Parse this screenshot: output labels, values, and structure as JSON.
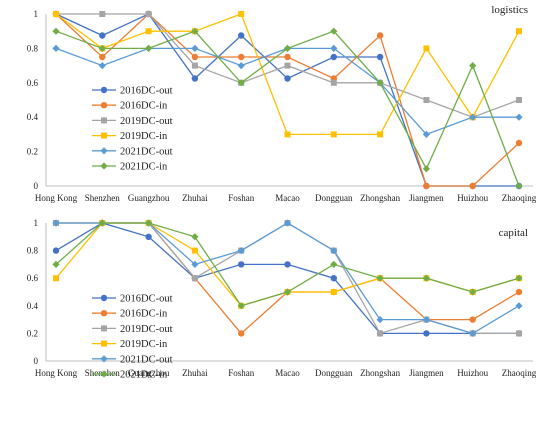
{
  "chart_data": [
    {
      "type": "line",
      "title": "logistics",
      "categories": [
        "Hong Kong",
        "Shenzhen",
        "Guangzhou",
        "Zhuhai",
        "Foshan",
        "Macao",
        "Dongguan",
        "Zhongshan",
        "Jiangmen",
        "Huizhou",
        "Zhaoqing"
      ],
      "ylim": [
        0,
        1
      ],
      "yticks": [
        "0",
        "0.2",
        "0.4",
        "0.6",
        "0.8",
        "1"
      ],
      "grid": false,
      "legend_position": "left",
      "series": [
        {
          "name": "2016DC-out",
          "color": "#4472C4",
          "marker": "circle",
          "values": [
            1.0,
            0.875,
            1.0,
            0.625,
            0.875,
            0.625,
            0.75,
            0.75,
            0.0,
            0.0,
            0.0
          ]
        },
        {
          "name": "2016DC-in",
          "color": "#ED7D31",
          "marker": "circle",
          "values": [
            1.0,
            0.75,
            1.0,
            0.75,
            0.75,
            0.75,
            0.625,
            0.875,
            0.0,
            0.0,
            0.25
          ]
        },
        {
          "name": "2019DC-out",
          "color": "#A5A5A5",
          "marker": "square",
          "values": [
            1.0,
            1.0,
            1.0,
            0.7,
            0.6,
            0.7,
            0.6,
            0.6,
            0.5,
            0.4,
            0.5
          ]
        },
        {
          "name": "2019DC-in",
          "color": "#FFC000",
          "marker": "square",
          "values": [
            1.0,
            0.8,
            0.9,
            0.9,
            1.0,
            0.3,
            0.3,
            0.3,
            0.8,
            0.4,
            0.9
          ]
        },
        {
          "name": "2021DC-out",
          "color": "#5B9BD5",
          "marker": "diamond",
          "values": [
            0.8,
            0.7,
            0.8,
            0.8,
            0.7,
            0.8,
            0.8,
            0.6,
            0.3,
            0.4,
            0.4
          ]
        },
        {
          "name": "2021DC-in",
          "color": "#70AD47",
          "marker": "diamond",
          "values": [
            0.9,
            0.8,
            0.8,
            0.9,
            0.6,
            0.8,
            0.9,
            0.6,
            0.1,
            0.7,
            0.0
          ]
        }
      ]
    },
    {
      "type": "line",
      "title": "capital",
      "categories": [
        "Hong Kong",
        "Shenzhen",
        "Guangzhou",
        "Zhuhai",
        "Foshan",
        "Macao",
        "Dongguan",
        "Zhongshan",
        "Jiangmen",
        "Huizhou",
        "Zhaoqing"
      ],
      "ylim": [
        0,
        1
      ],
      "yticks": [
        "0",
        "0.2",
        "0.4",
        "0.6",
        "0.8",
        "1"
      ],
      "grid": false,
      "legend_position": "center",
      "series": [
        {
          "name": "2016DC-out",
          "color": "#4472C4",
          "marker": "circle",
          "values": [
            0.8,
            1.0,
            0.9,
            0.6,
            0.7,
            0.7,
            0.6,
            0.2,
            0.2,
            0.2,
            0.2
          ]
        },
        {
          "name": "2016DC-in",
          "color": "#ED7D31",
          "marker": "circle",
          "values": [
            1.0,
            1.0,
            1.0,
            0.6,
            0.2,
            0.5,
            0.5,
            0.6,
            0.3,
            0.3,
            0.5
          ]
        },
        {
          "name": "2019DC-out",
          "color": "#A5A5A5",
          "marker": "square",
          "values": [
            1.0,
            1.0,
            1.0,
            0.6,
            0.8,
            1.0,
            0.8,
            0.2,
            0.3,
            0.2,
            0.2
          ]
        },
        {
          "name": "2019DC-in",
          "color": "#FFC000",
          "marker": "square",
          "values": [
            0.6,
            1.0,
            1.0,
            0.8,
            0.4,
            0.5,
            0.5,
            0.6,
            0.6,
            0.5,
            0.6
          ]
        },
        {
          "name": "2021DC-out",
          "color": "#5B9BD5",
          "marker": "diamond",
          "values": [
            1.0,
            1.0,
            1.0,
            0.7,
            0.8,
            1.0,
            0.8,
            0.3,
            0.3,
            0.2,
            0.4
          ]
        },
        {
          "name": "2021DC-in",
          "color": "#70AD47",
          "marker": "diamond",
          "values": [
            0.7,
            1.0,
            1.0,
            0.9,
            0.4,
            0.5,
            0.7,
            0.6,
            0.6,
            0.5,
            0.6
          ]
        }
      ]
    }
  ]
}
